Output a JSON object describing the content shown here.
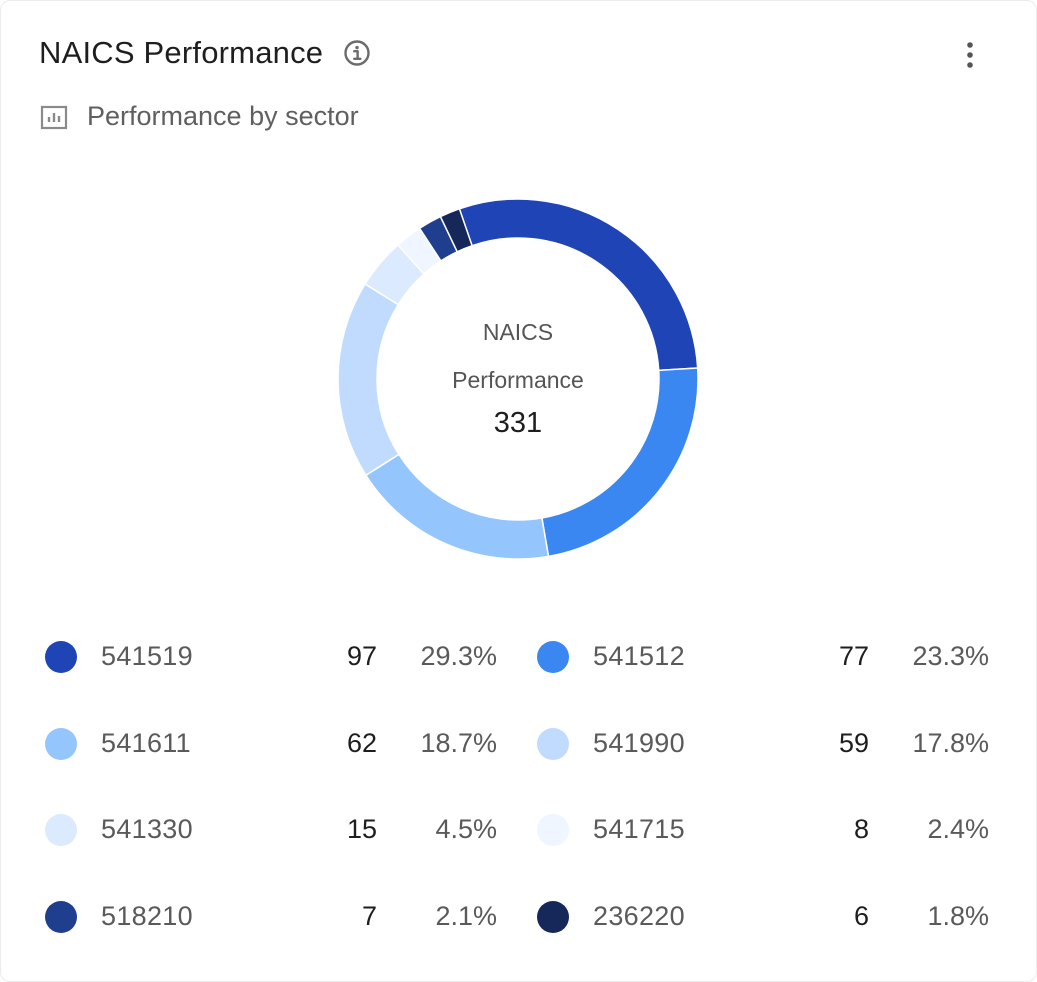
{
  "card": {
    "title": "NAICS Performance",
    "subtitle": "Performance by sector",
    "info_icon": "info-circle-icon",
    "menu_icon": "more-vertical-icon",
    "subtitle_icon": "bar-chart-icon"
  },
  "center": {
    "line1": "NAICS",
    "line2": "Performance",
    "total": "331"
  },
  "chart_data": {
    "type": "pie",
    "variant": "donut",
    "total": 331,
    "center_label": [
      "NAICS",
      "Performance"
    ],
    "categories": [
      "541519",
      "541512",
      "541611",
      "541990",
      "541330",
      "541715",
      "518210",
      "236220"
    ],
    "values": [
      97,
      77,
      62,
      59,
      15,
      8,
      7,
      6
    ],
    "percentages": [
      "29.3%",
      "23.3%",
      "18.7%",
      "17.8%",
      "4.5%",
      "2.4%",
      "2.1%",
      "1.8%"
    ],
    "colors": [
      "#1f44b5",
      "#3a87f2",
      "#94c5fc",
      "#c0dbfd",
      "#dbeafe",
      "#eff6ff",
      "#1f3e8e",
      "#16275a"
    ],
    "legend_position": "bottom"
  }
}
